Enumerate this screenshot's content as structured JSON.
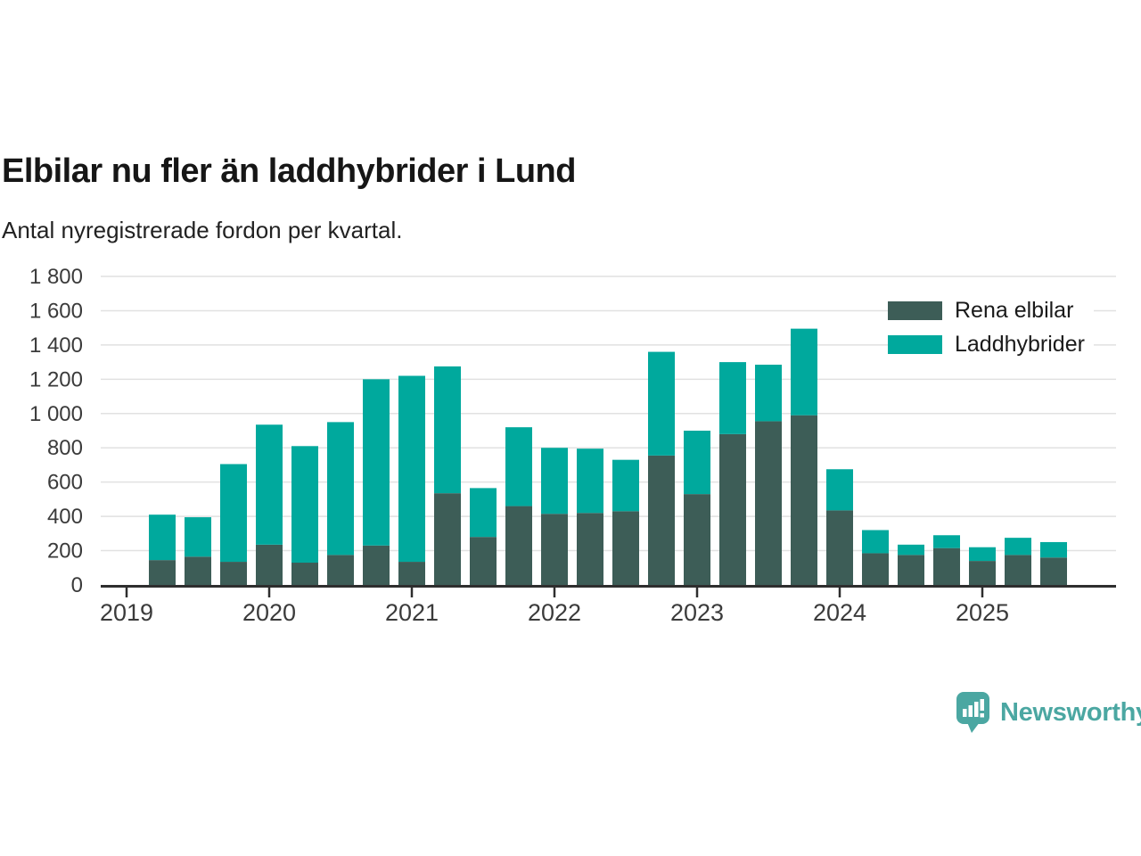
{
  "title": "Elbilar nu fler än laddhybrider i Lund",
  "subtitle": "Antal nyregistrerade fordon per kvartal.",
  "colors": {
    "rena_elbilar": "#3d5d57",
    "laddhybrider": "#00a99d",
    "gridline": "#e1e1e1",
    "axis": "#2e2e2e",
    "tick_text": "#3b3b3b",
    "brand_teal": "#4ba7a2"
  },
  "legend": {
    "position": "top-right",
    "items": [
      {
        "label": "Rena elbilar",
        "color": "#3d5d57"
      },
      {
        "label": "Laddhybrider",
        "color": "#00a99d"
      }
    ]
  },
  "branding": {
    "name": "Newsworthy"
  },
  "chart_data": {
    "type": "bar",
    "stacked": true,
    "title": "Elbilar nu fler än laddhybrider i Lund",
    "subtitle": "Antal nyregistrerade fordon per kvartal.",
    "xlabel": "",
    "ylabel": "",
    "grid": true,
    "ylim": [
      0,
      1800
    ],
    "yticks": [
      0,
      200,
      400,
      600,
      800,
      1000,
      1200,
      1400,
      1600,
      1800
    ],
    "yticklabels": [
      "0",
      "200",
      "400",
      "600",
      "800",
      "1 000",
      "1 200",
      "1 400",
      "1 600",
      "1 800"
    ],
    "xticklabels": [
      "2019",
      "2020",
      "2021",
      "2022",
      "2023",
      "2024",
      "2025"
    ],
    "categories": [
      "2019 K2",
      "2019 K3",
      "2019 K4",
      "2020 K1",
      "2020 K2",
      "2020 K3",
      "2020 K4",
      "2021 K1",
      "2021 K2",
      "2021 K3",
      "2021 K4",
      "2022 K1",
      "2022 K2",
      "2022 K3",
      "2022 K4",
      "2023 K1",
      "2023 K2",
      "2023 K3",
      "2023 K4",
      "2024 K1",
      "2024 K2",
      "2024 K3",
      "2024 K4",
      "2025 K1",
      "2025 K2",
      "2025 K3"
    ],
    "series": [
      {
        "name": "Rena elbilar",
        "values": [
          145,
          165,
          135,
          235,
          130,
          175,
          230,
          135,
          535,
          280,
          460,
          415,
          420,
          430,
          755,
          530,
          880,
          955,
          990,
          435,
          185,
          175,
          215,
          140,
          175,
          160
        ]
      },
      {
        "name": "Laddhybrider",
        "values": [
          265,
          230,
          570,
          700,
          680,
          775,
          970,
          1085,
          740,
          285,
          460,
          385,
          375,
          300,
          605,
          370,
          420,
          330,
          505,
          240,
          135,
          60,
          75,
          80,
          100,
          90
        ]
      }
    ]
  }
}
